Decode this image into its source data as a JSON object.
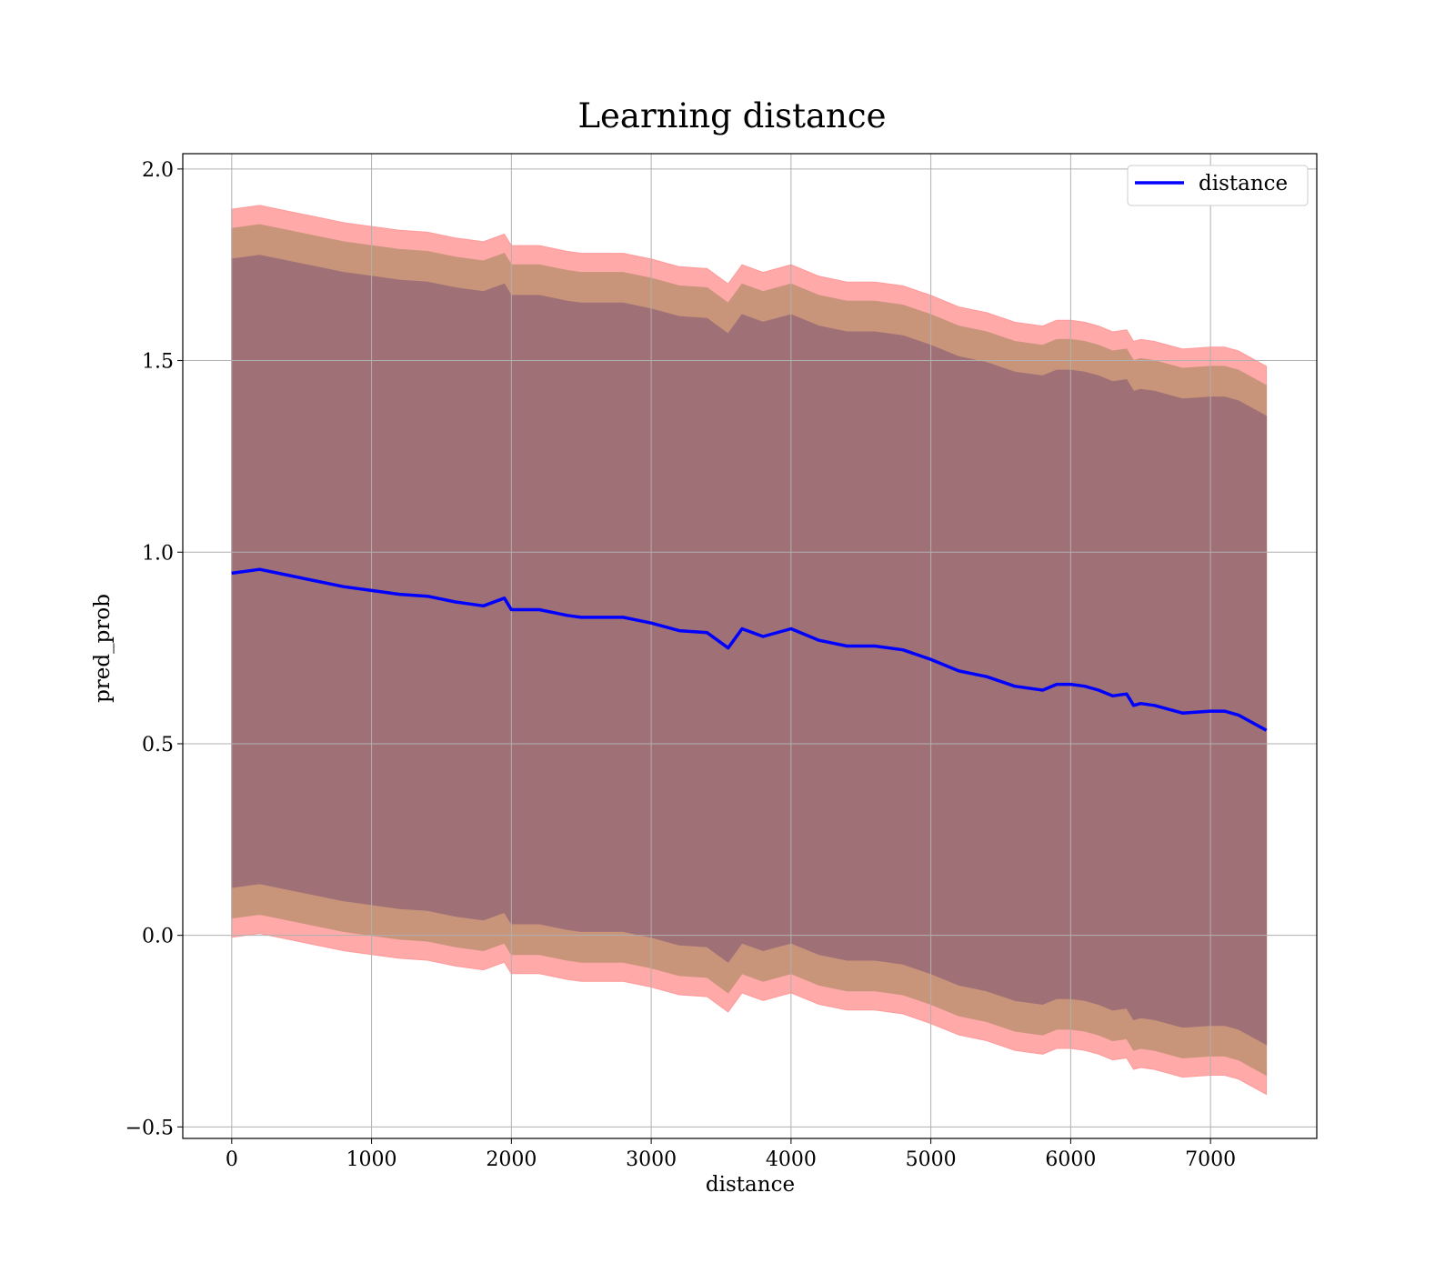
{
  "chart_data": {
    "type": "area",
    "title": "Learning distance",
    "xlabel": "distance",
    "ylabel": "pred_prob",
    "xlim": [
      -350,
      7760
    ],
    "ylim": [
      -0.53,
      2.04
    ],
    "xticks": [
      0,
      1000,
      2000,
      3000,
      4000,
      5000,
      6000,
      7000
    ],
    "yticks": [
      -0.5,
      0.0,
      0.5,
      1.0,
      1.5,
      2.0
    ],
    "xtick_labels": [
      "0",
      "1000",
      "2000",
      "3000",
      "4000",
      "5000",
      "6000",
      "7000"
    ],
    "ytick_labels": [
      "−0.5",
      "0.0",
      "0.5",
      "1.0",
      "1.5",
      "2.0"
    ],
    "grid": true,
    "legend": {
      "position": "top-right",
      "entries": [
        "distance"
      ]
    },
    "colors": {
      "line": "#0000ff",
      "outer_band": "#ff9a9a",
      "middle_band": "#c8957b",
      "inner_band": "#a07077",
      "grid": "#b0b0b0"
    },
    "x": [
      0,
      200,
      400,
      600,
      800,
      1000,
      1200,
      1400,
      1600,
      1800,
      1950,
      2000,
      2200,
      2400,
      2500,
      2600,
      2800,
      3000,
      3200,
      3400,
      3550,
      3650,
      3800,
      4000,
      4200,
      4400,
      4600,
      4800,
      5000,
      5200,
      5400,
      5600,
      5800,
      5900,
      6000,
      6100,
      6200,
      6300,
      6400,
      6450,
      6500,
      6600,
      6800,
      7000,
      7100,
      7200,
      7400
    ],
    "series": [
      {
        "name": "distance",
        "values": [
          0.945,
          0.955,
          0.94,
          0.925,
          0.91,
          0.9,
          0.89,
          0.885,
          0.87,
          0.86,
          0.88,
          0.85,
          0.85,
          0.835,
          0.83,
          0.83,
          0.83,
          0.815,
          0.795,
          0.79,
          0.75,
          0.8,
          0.78,
          0.8,
          0.77,
          0.755,
          0.755,
          0.745,
          0.72,
          0.69,
          0.675,
          0.65,
          0.64,
          0.655,
          0.655,
          0.65,
          0.64,
          0.625,
          0.63,
          0.6,
          0.605,
          0.6,
          0.58,
          0.585,
          0.585,
          0.575,
          0.535
        ]
      }
    ],
    "bands": [
      {
        "offset": 0.95,
        "label": "outer"
      },
      {
        "offset": 0.9,
        "label": "middle"
      },
      {
        "offset": 0.82,
        "label": "inner"
      }
    ]
  }
}
